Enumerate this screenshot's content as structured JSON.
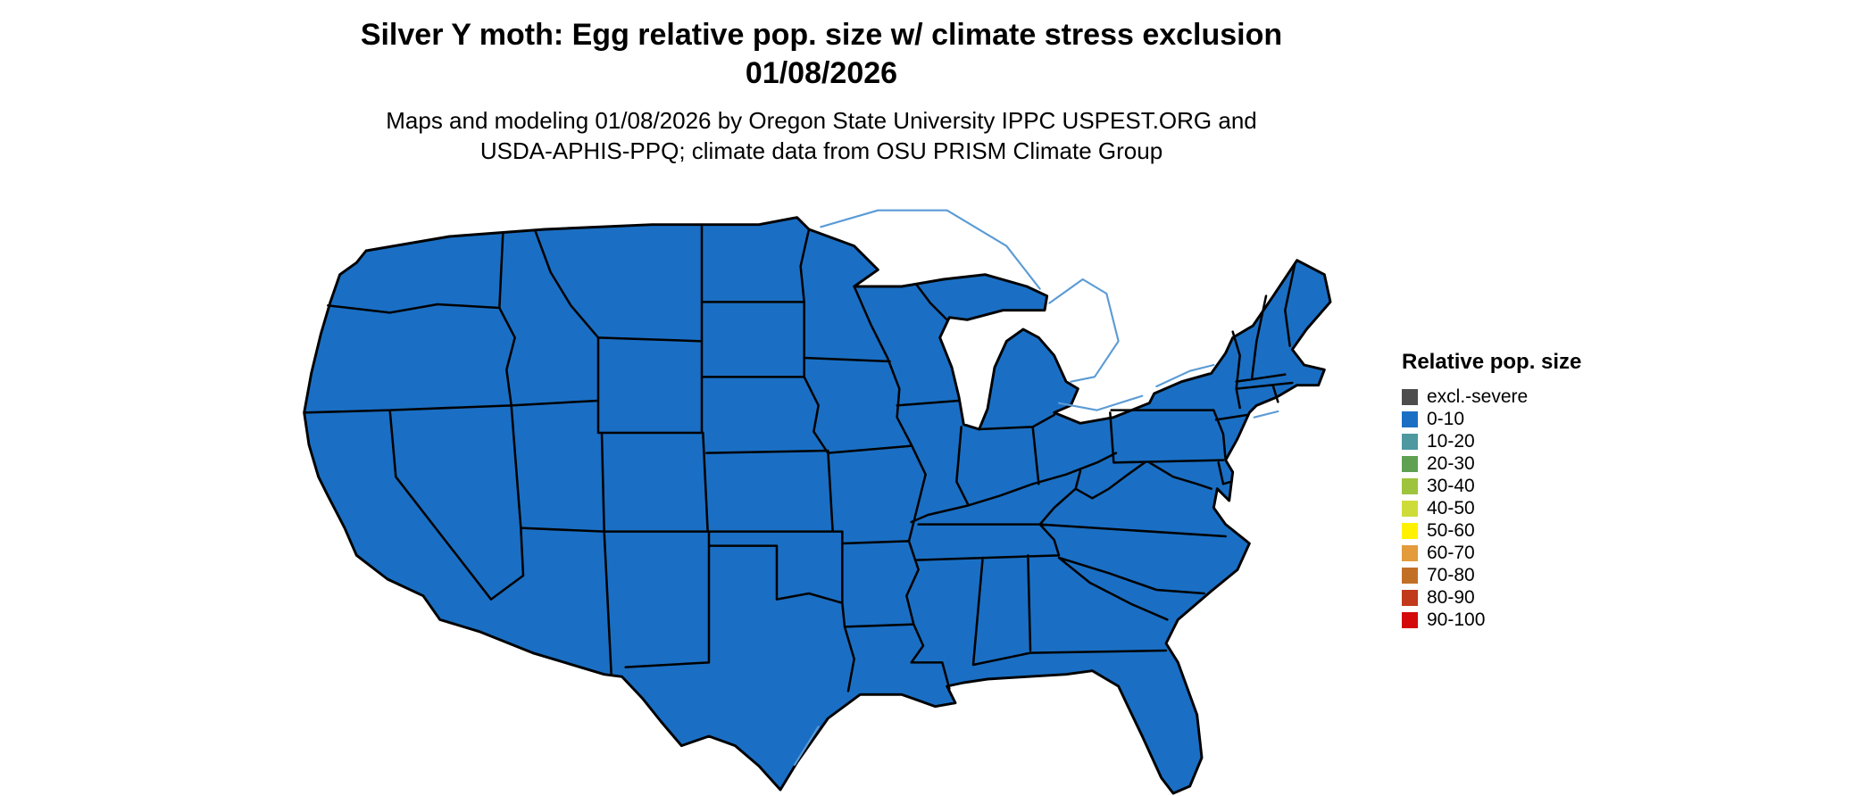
{
  "header": {
    "title_line1": "Silver Y moth: Egg relative pop. size w/ climate stress exclusion",
    "title_line2": "01/08/2026",
    "subtitle_line1": "Maps and modeling 01/08/2026 by Oregon State University IPPC USPEST.ORG and",
    "subtitle_line2": "USDA-APHIS-PPQ; climate data from OSU PRISM Climate Group"
  },
  "legend": {
    "title": "Relative pop. size",
    "items": [
      {
        "label": "excl.-severe",
        "color": "#4D4D4D"
      },
      {
        "label": "0-10",
        "color": "#1A6FC4"
      },
      {
        "label": "10-20",
        "color": "#4E98A0"
      },
      {
        "label": "20-30",
        "color": "#5FA052"
      },
      {
        "label": "30-40",
        "color": "#9DC43C"
      },
      {
        "label": "40-50",
        "color": "#CEDC3A"
      },
      {
        "label": "50-60",
        "color": "#FFF100"
      },
      {
        "label": "60-70",
        "color": "#E39B3B"
      },
      {
        "label": "70-80",
        "color": "#C26F26"
      },
      {
        "label": "80-90",
        "color": "#C03A1B"
      },
      {
        "label": "90-100",
        "color": "#D40A0A"
      }
    ]
  },
  "map": {
    "region": "Contiguous United States",
    "fill_color": "#1A6FC4",
    "border_color": "#000000",
    "water_outline_color": "#5B9BD5"
  },
  "chart_data": {
    "type": "choropleth",
    "title": "Silver Y moth: Egg relative pop. size w/ climate stress exclusion 01/08/2026",
    "legend_title": "Relative pop. size",
    "classes": [
      "excl.-severe",
      "0-10",
      "10-20",
      "20-30",
      "30-40",
      "40-50",
      "50-60",
      "60-70",
      "70-80",
      "80-90",
      "90-100"
    ],
    "class_colors": [
      "#4D4D4D",
      "#1A6FC4",
      "#4E98A0",
      "#5FA052",
      "#9DC43C",
      "#CEDC3A",
      "#FFF100",
      "#E39B3B",
      "#C26F26",
      "#C03A1B",
      "#D40A0A"
    ],
    "observation": "All contiguous U.S. states are shown in the 0-10 relative population size class on 01/08/2026"
  }
}
